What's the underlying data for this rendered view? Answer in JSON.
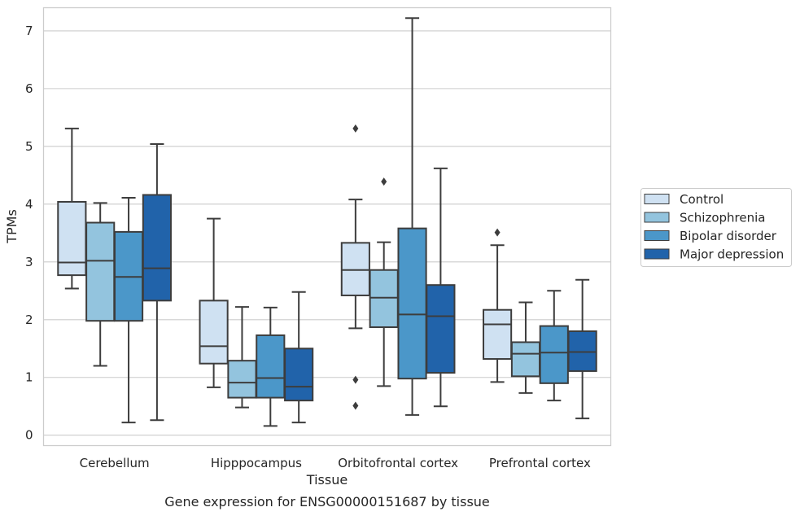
{
  "chart_data": {
    "type": "box",
    "title": "",
    "caption": "Gene expression for ENSG00000151687 by tissue",
    "xlabel": "Tissue",
    "ylabel": "TPMs",
    "ylim": [
      -0.18,
      7.4
    ],
    "yticks": [
      0,
      1,
      2,
      3,
      4,
      5,
      6,
      7
    ],
    "grid": "horizontal",
    "legend_position": "right",
    "categories": [
      "Cerebellum",
      "Hipppocampus",
      "Orbitofrontal cortex",
      "Prefrontal cortex"
    ],
    "series": [
      {
        "name": "Control",
        "color": "#cfe1f2",
        "boxes": [
          {
            "whislo": 2.54,
            "q1": 2.77,
            "med": 2.99,
            "q3": 4.04,
            "whishi": 5.31,
            "fliers": []
          },
          {
            "whislo": 0.83,
            "q1": 1.24,
            "med": 1.54,
            "q3": 2.33,
            "whishi": 3.75,
            "fliers": []
          },
          {
            "whislo": 1.85,
            "q1": 2.42,
            "med": 2.86,
            "q3": 3.33,
            "whishi": 4.08,
            "fliers": [
              5.31,
              0.96,
              0.51
            ]
          },
          {
            "whislo": 0.92,
            "q1": 1.32,
            "med": 1.92,
            "q3": 2.17,
            "whishi": 3.29,
            "fliers": [
              3.51
            ]
          }
        ]
      },
      {
        "name": "Schizophrenia",
        "color": "#93c4de",
        "boxes": [
          {
            "whislo": 1.2,
            "q1": 1.98,
            "med": 3.02,
            "q3": 3.68,
            "whishi": 4.02,
            "fliers": []
          },
          {
            "whislo": 0.48,
            "q1": 0.65,
            "med": 0.91,
            "q3": 1.29,
            "whishi": 2.22,
            "fliers": []
          },
          {
            "whislo": 0.85,
            "q1": 1.87,
            "med": 2.38,
            "q3": 2.86,
            "whishi": 3.34,
            "fliers": [
              4.39
            ]
          },
          {
            "whislo": 0.73,
            "q1": 1.02,
            "med": 1.41,
            "q3": 1.61,
            "whishi": 2.3,
            "fliers": []
          }
        ]
      },
      {
        "name": "Bipolar disorder",
        "color": "#4b97c9",
        "boxes": [
          {
            "whislo": 0.22,
            "q1": 1.98,
            "med": 2.74,
            "q3": 3.52,
            "whishi": 4.11,
            "fliers": []
          },
          {
            "whislo": 0.16,
            "q1": 0.65,
            "med": 0.99,
            "q3": 1.73,
            "whishi": 2.21,
            "fliers": []
          },
          {
            "whislo": 0.35,
            "q1": 0.98,
            "med": 2.09,
            "q3": 3.58,
            "whishi": 7.22,
            "fliers": []
          },
          {
            "whislo": 0.6,
            "q1": 0.9,
            "med": 1.43,
            "q3": 1.89,
            "whishi": 2.5,
            "fliers": []
          }
        ]
      },
      {
        "name": "Major depression",
        "color": "#2163aa",
        "boxes": [
          {
            "whislo": 0.26,
            "q1": 2.33,
            "med": 2.89,
            "q3": 4.16,
            "whishi": 5.04,
            "fliers": []
          },
          {
            "whislo": 0.22,
            "q1": 0.6,
            "med": 0.84,
            "q3": 1.5,
            "whishi": 2.48,
            "fliers": []
          },
          {
            "whislo": 0.5,
            "q1": 1.08,
            "med": 2.06,
            "q3": 2.6,
            "whishi": 4.62,
            "fliers": []
          },
          {
            "whislo": 0.29,
            "q1": 1.11,
            "med": 1.44,
            "q3": 1.8,
            "whishi": 2.69,
            "fliers": []
          }
        ]
      }
    ]
  }
}
